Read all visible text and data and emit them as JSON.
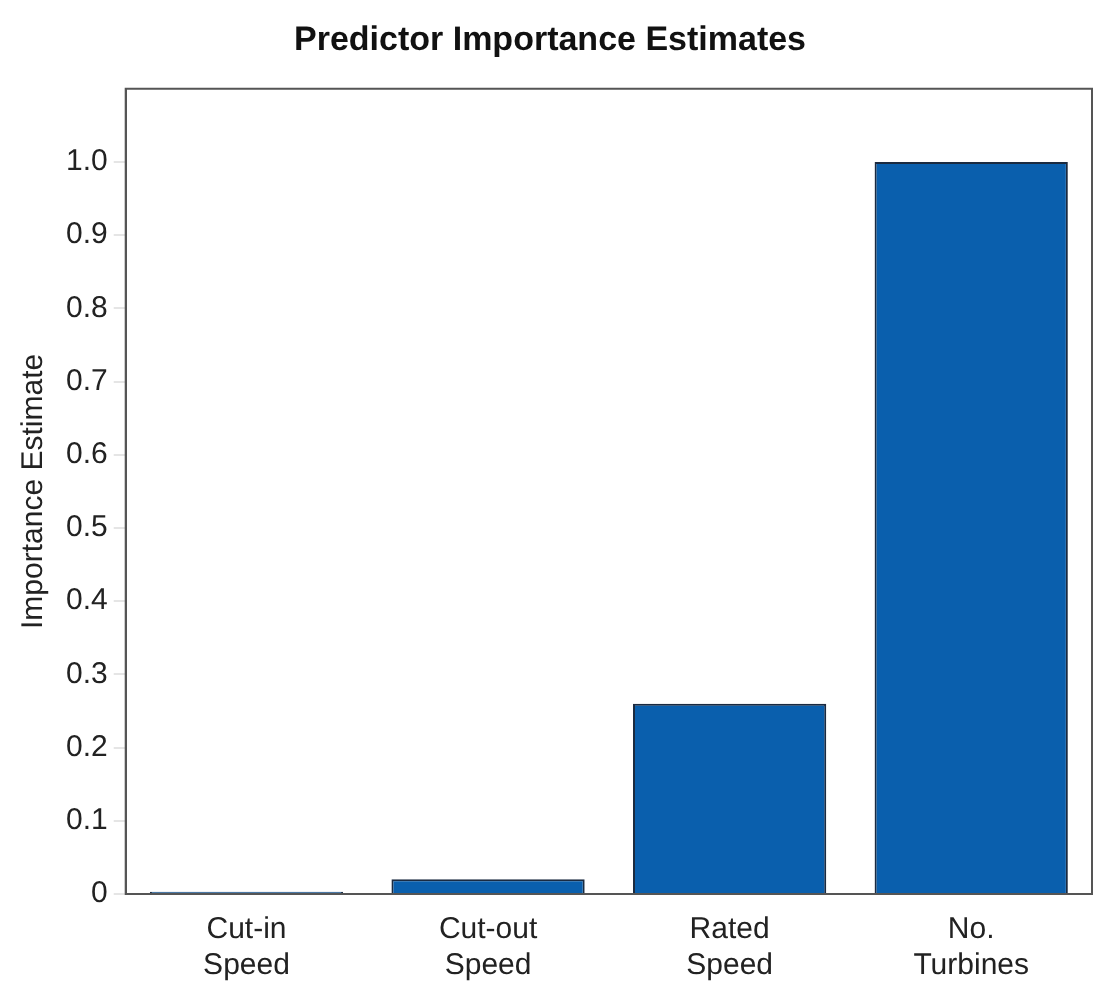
{
  "chart_data": {
    "type": "bar",
    "title": "Predictor Importance Estimates",
    "ylabel": "Importance Estimate",
    "categories": [
      "Cut-in Speed",
      "Cut-out Speed",
      "Rated Speed",
      "No. Turbines"
    ],
    "values": [
      0.003,
      0.02,
      0.26,
      1.0
    ],
    "color": "#0a5fad",
    "ylim": [
      0,
      1.1
    ],
    "yticks": [
      {
        "value": 0,
        "label": "0"
      },
      {
        "value": 0.1,
        "label": "0.1"
      },
      {
        "value": 0.2,
        "label": "0.2"
      },
      {
        "value": 0.3,
        "label": "0.3"
      },
      {
        "value": 0.4,
        "label": "0.4"
      },
      {
        "value": 0.5,
        "label": "0.5"
      },
      {
        "value": 0.6,
        "label": "0.6"
      },
      {
        "value": 0.7,
        "label": "0.7"
      },
      {
        "value": 0.8,
        "label": "0.8"
      },
      {
        "value": 0.9,
        "label": "0.9"
      },
      {
        "value": 1.0,
        "label": "1.0"
      }
    ],
    "grid": false,
    "legend": false
  }
}
